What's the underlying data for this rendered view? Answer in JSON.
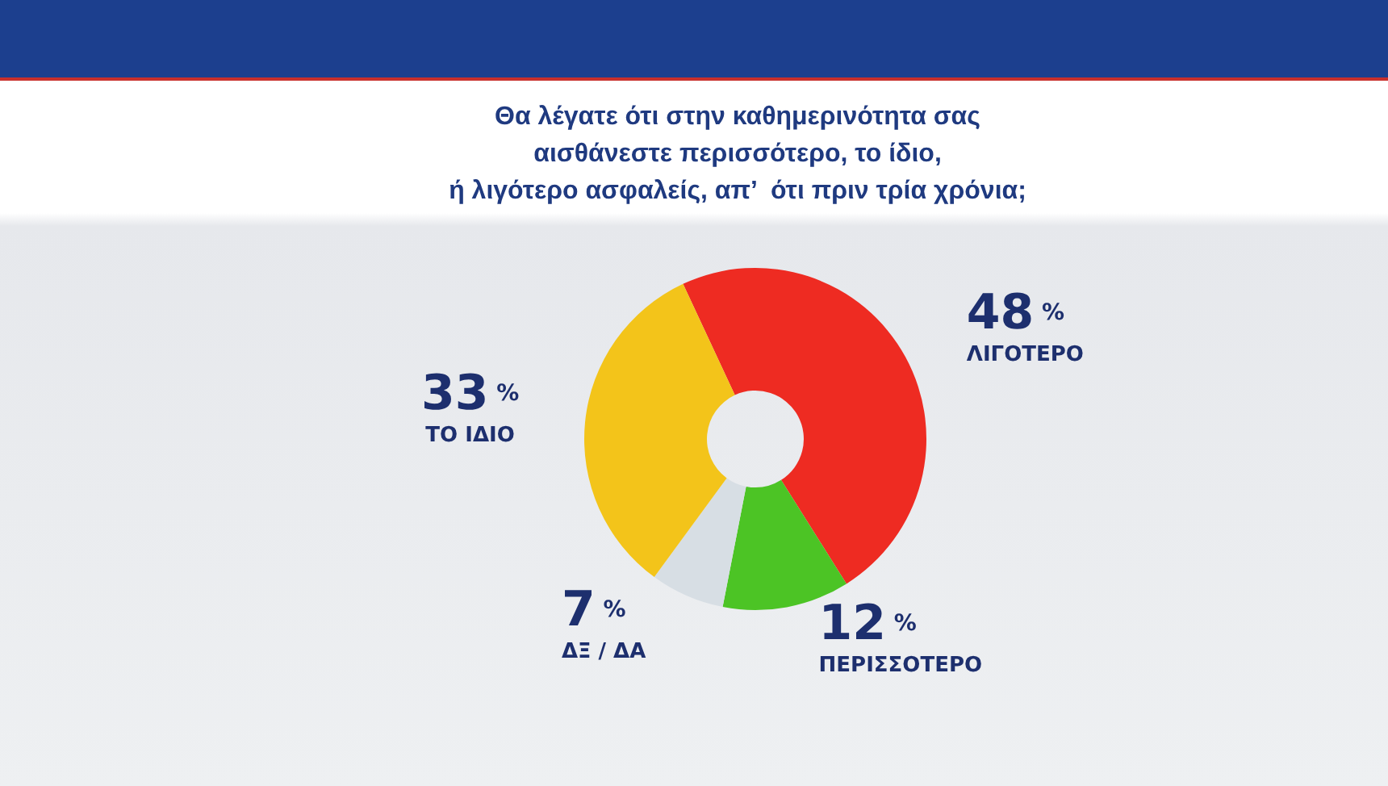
{
  "chart_data": {
    "type": "donut",
    "title": "Θα λέγατε ότι στην καθημερινότητα σας\nαισθάνεστε περισσότερο, το ίδιο,\nή λιγότερο ασφαλείς, απ’  ότι πριν τρία χρόνια;",
    "categories": [
      "ΛΙΓΟΤΕΡΟ",
      "ΠΕΡΙΣΣΟΤΕΡΟ",
      "ΔΞ / ΔΑ",
      "ΤΟ ΙΔΙΟ"
    ],
    "values": [
      48,
      12,
      7,
      33
    ],
    "value_labels": [
      "48 %",
      "12 %",
      "7 %",
      "33 %"
    ],
    "colors": [
      "#ee2b22",
      "#4cc425",
      "#d7dee4",
      "#f3c41a"
    ]
  }
}
